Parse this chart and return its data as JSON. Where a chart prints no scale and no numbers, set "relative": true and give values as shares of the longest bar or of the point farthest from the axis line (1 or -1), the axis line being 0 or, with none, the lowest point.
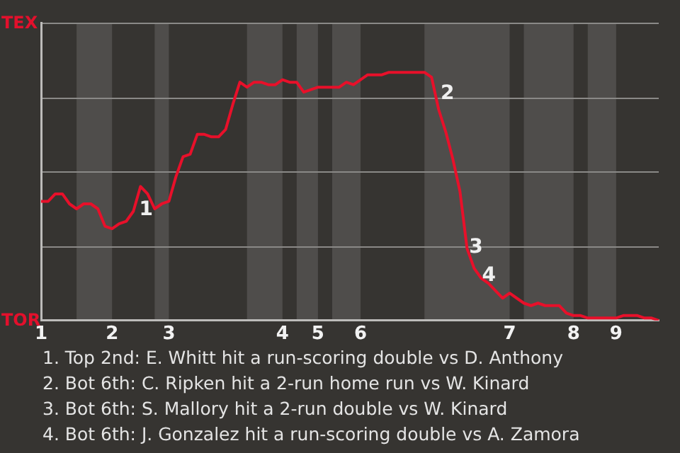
{
  "chart_data": {
    "type": "line",
    "relative": true,
    "categories": [
      "1",
      null,
      null,
      null,
      null,
      null,
      null,
      null,
      null,
      null,
      "2",
      null,
      null,
      null,
      null,
      null,
      null,
      null,
      "3",
      null,
      null,
      null,
      null,
      null,
      null,
      null,
      null,
      null,
      null,
      null,
      null,
      null,
      null,
      null,
      "4",
      null,
      null,
      null,
      null,
      "5",
      null,
      null,
      null,
      null,
      null,
      "6",
      null,
      null,
      null,
      null,
      null,
      null,
      null,
      null,
      null,
      null,
      null,
      null,
      null,
      null,
      null,
      null,
      null,
      null,
      null,
      null,
      "7",
      null,
      null,
      null,
      null,
      null,
      null,
      null,
      null,
      "8",
      null,
      null,
      null,
      null,
      null,
      "9",
      null,
      null,
      null,
      null,
      null,
      null
    ],
    "series": [
      {
        "color": "#e8102a",
        "values": [
          0.48,
          0.48,
          0.51,
          0.51,
          0.47,
          0.45,
          0.47,
          0.47,
          0.45,
          0.38,
          0.37,
          0.39,
          0.4,
          0.44,
          0.54,
          0.51,
          0.45,
          0.47,
          0.48,
          0.58,
          0.66,
          0.67,
          0.75,
          0.75,
          0.74,
          0.74,
          0.77,
          0.87,
          0.96,
          0.94,
          0.96,
          0.96,
          0.95,
          0.95,
          0.97,
          0.96,
          0.96,
          0.92,
          0.93,
          0.94,
          0.94,
          0.94,
          0.94,
          0.96,
          0.95,
          0.97,
          0.99,
          0.99,
          0.99,
          1,
          1,
          1,
          1,
          1,
          1,
          0.98,
          0.85,
          0.76,
          0.65,
          0.52,
          0.29,
          0.21,
          0.17,
          0.15,
          0.12,
          0.09,
          0.11,
          0.09,
          0.07,
          0.06,
          0.07,
          0.06,
          0.06,
          0.06,
          0.03,
          0.02,
          0.02,
          0.01,
          0.01,
          0.01,
          0.01,
          0.01,
          0.02,
          0.02,
          0.02,
          0.01,
          0.01,
          0
        ]
      }
    ],
    "grid": "y",
    "marker": "none",
    "line_style": "solid",
    "annotations": [
      "TEX",
      "TOR",
      "1",
      "2",
      "3",
      "4",
      "1. Top 2nd: E. Whitt hit a run-scoring double vs D. Anthony",
      "2. Bot 6th: C. Ripken hit a 2-run home run vs W. Kinard",
      "3. Bot 6th: S. Mallory hit a 2-run double vs W. Kinard",
      "4. Bot 6th: J. Gonzalez hit a run-scoring double vs A. Zamora"
    ]
  }
}
